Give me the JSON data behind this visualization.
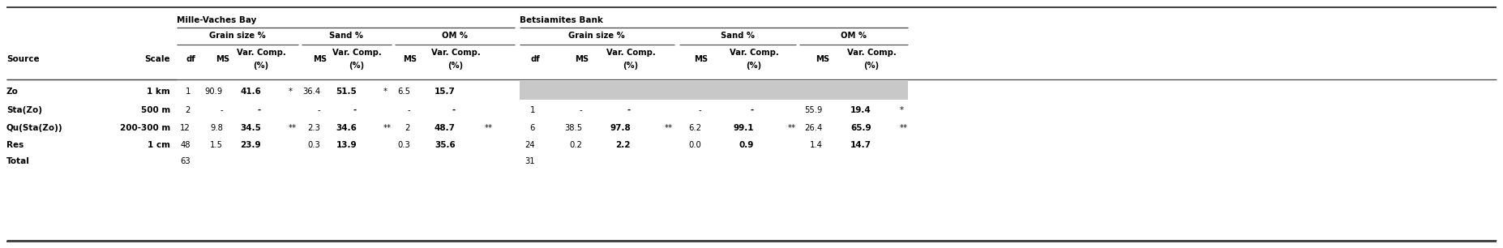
{
  "rows": [
    {
      "source": "Zo",
      "scale": "1 km",
      "mv_df": "1",
      "mv_gs_ms": "90.9",
      "mv_gs_vc": "41.6",
      "mv_gs_sig": "*",
      "mv_s_ms": "36.4",
      "mv_s_vc": "51.5",
      "mv_s_sig": "*",
      "mv_om_ms": "6.5",
      "mv_om_vc": "15.7",
      "mv_om_sig": "",
      "bs_df": "",
      "bs_gs_ms": "",
      "bs_gs_vc": "",
      "bs_gs_sig": "",
      "bs_s_ms": "",
      "bs_s_vc": "",
      "bs_s_sig": "",
      "bs_om_ms": "",
      "bs_om_vc": "",
      "bs_om_sig": "",
      "shaded_bs": true
    },
    {
      "source": "Sta(Zo)",
      "scale": "500 m",
      "mv_df": "2",
      "mv_gs_ms": "-",
      "mv_gs_vc": "-",
      "mv_gs_sig": "",
      "mv_s_ms": "-",
      "mv_s_vc": "-",
      "mv_s_sig": "",
      "mv_om_ms": "-",
      "mv_om_vc": "-",
      "mv_om_sig": "",
      "bs_df": "1",
      "bs_gs_ms": "-",
      "bs_gs_vc": "-",
      "bs_gs_sig": "",
      "bs_s_ms": "-",
      "bs_s_vc": "-",
      "bs_s_sig": "",
      "bs_om_ms": "55.9",
      "bs_om_vc": "19.4",
      "bs_om_sig": "*",
      "shaded_bs": false
    },
    {
      "source": "Qu(Sta(Zo))",
      "scale": "200-300 m",
      "mv_df": "12",
      "mv_gs_ms": "9.8",
      "mv_gs_vc": "34.5",
      "mv_gs_sig": "**",
      "mv_s_ms": "2.3",
      "mv_s_vc": "34.6",
      "mv_s_sig": "**",
      "mv_om_ms": "2",
      "mv_om_vc": "48.7",
      "mv_om_sig": "**",
      "bs_df": "6",
      "bs_gs_ms": "38.5",
      "bs_gs_vc": "97.8",
      "bs_gs_sig": "**",
      "bs_s_ms": "6.2",
      "bs_s_vc": "99.1",
      "bs_s_sig": "**",
      "bs_om_ms": "26.4",
      "bs_om_vc": "65.9",
      "bs_om_sig": "**",
      "shaded_bs": false
    },
    {
      "source": "Res",
      "scale": "1 cm",
      "mv_df": "48",
      "mv_gs_ms": "1.5",
      "mv_gs_vc": "23.9",
      "mv_gs_sig": "",
      "mv_s_ms": "0.3",
      "mv_s_vc": "13.9",
      "mv_s_sig": "",
      "mv_om_ms": "0.3",
      "mv_om_vc": "35.6",
      "mv_om_sig": "",
      "bs_df": "24",
      "bs_gs_ms": "0.2",
      "bs_gs_vc": "2.2",
      "bs_gs_sig": "",
      "bs_s_ms": "0.0",
      "bs_s_vc": "0.9",
      "bs_s_sig": "",
      "bs_om_ms": "1.4",
      "bs_om_vc": "14.7",
      "bs_om_sig": "",
      "shaded_bs": false
    },
    {
      "source": "Total",
      "scale": "",
      "mv_df": "63",
      "mv_gs_ms": "",
      "mv_gs_vc": "",
      "mv_gs_sig": "",
      "mv_s_ms": "",
      "mv_s_vc": "",
      "mv_s_sig": "",
      "mv_om_ms": "",
      "mv_om_vc": "",
      "mv_om_sig": "",
      "bs_df": "31",
      "bs_gs_ms": "",
      "bs_gs_vc": "",
      "bs_gs_sig": "",
      "bs_s_ms": "",
      "bs_s_vc": "",
      "bs_s_sig": "",
      "bs_om_ms": "",
      "bs_om_vc": "",
      "bs_om_sig": "",
      "shaded_bs": false
    }
  ],
  "shaded_color": "#c8c8c8",
  "bg_color": "#ffffff",
  "line_color": "#444444",
  "text_color": "#000000",
  "font_size": 7.2,
  "bold_font_size": 7.5
}
